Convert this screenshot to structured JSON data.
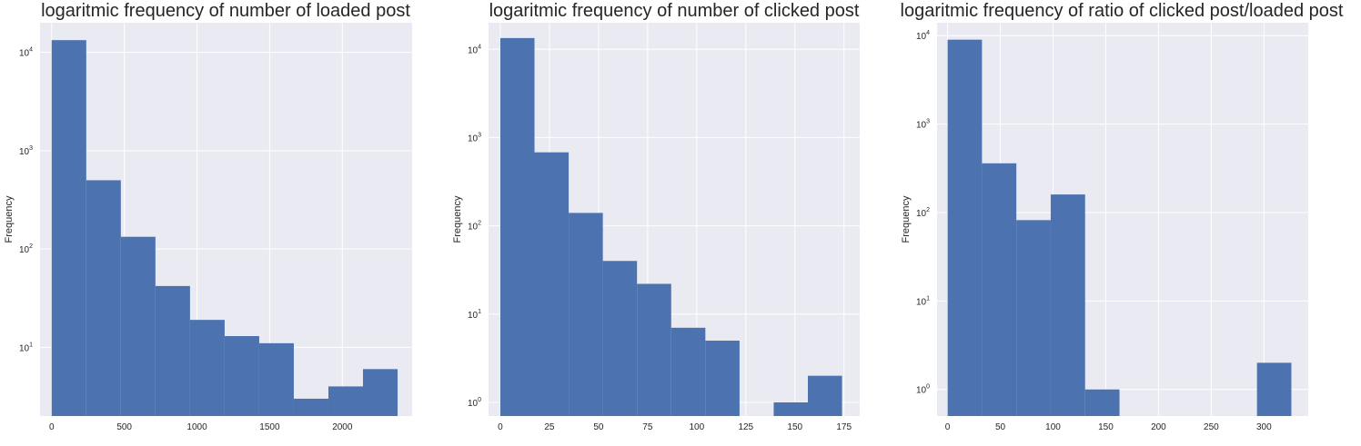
{
  "chart_data": [
    {
      "type": "histogram",
      "title": "logaritmic frequency of number of loaded post",
      "xlabel": "",
      "ylabel": "Frequency",
      "yscale": "log",
      "ylim": [
        2,
        20000
      ],
      "xlim": [
        -80,
        2480
      ],
      "xticks": [
        0,
        500,
        1000,
        1500,
        2000
      ],
      "xtick_labels": [
        "0",
        "500",
        "1000",
        "1500",
        "2000"
      ],
      "yticks": [
        10,
        100,
        1000,
        10000
      ],
      "ytick_labels": [
        {
          "base": "10",
          "exp": "1"
        },
        {
          "base": "10",
          "exp": "2"
        },
        {
          "base": "10",
          "exp": "3"
        },
        {
          "base": "10",
          "exp": "4"
        }
      ],
      "bins": [
        0,
        238,
        476,
        714,
        952,
        1190,
        1428,
        1666,
        1904,
        2142,
        2380
      ],
      "values": [
        13300,
        500,
        133,
        42,
        19,
        13,
        11,
        3,
        4,
        6
      ],
      "grid": true,
      "bar_color": "#4c72b0",
      "background_color": "#eaeaf2"
    },
    {
      "type": "histogram",
      "title": "logaritmic frequency of number of clicked post",
      "xlabel": "",
      "ylabel": "Frequency",
      "yscale": "log",
      "ylim": [
        0.7,
        20000
      ],
      "xlim": [
        -6,
        183
      ],
      "xticks": [
        0,
        25,
        50,
        75,
        100,
        125,
        150,
        175
      ],
      "xtick_labels": [
        "0",
        "25",
        "50",
        "75",
        "100",
        "125",
        "150",
        "175"
      ],
      "yticks": [
        1,
        10,
        100,
        1000,
        10000
      ],
      "ytick_labels": [
        {
          "base": "10",
          "exp": "0"
        },
        {
          "base": "10",
          "exp": "1"
        },
        {
          "base": "10",
          "exp": "2"
        },
        {
          "base": "10",
          "exp": "3"
        },
        {
          "base": "10",
          "exp": "4"
        }
      ],
      "bins": [
        0,
        17.4,
        34.8,
        52.2,
        69.6,
        87,
        104.4,
        121.8,
        139.2,
        156.6,
        174
      ],
      "values": [
        13400,
        680,
        140,
        40,
        22,
        7,
        5,
        0,
        1,
        2
      ],
      "grid": true,
      "bar_color": "#4c72b0",
      "background_color": "#eaeaf2"
    },
    {
      "type": "histogram",
      "title": "logaritmic frequency of ratio of clicked post/loaded post",
      "xlabel": "",
      "ylabel": "Frequency",
      "yscale": "log",
      "ylim": [
        0.5,
        14000
      ],
      "xlim": [
        -10,
        342
      ],
      "xticks": [
        0,
        50,
        100,
        150,
        200,
        250,
        300
      ],
      "xtick_labels": [
        "0",
        "50",
        "100",
        "150",
        "200",
        "250",
        "300"
      ],
      "yticks": [
        1,
        10,
        100,
        1000,
        10000
      ],
      "ytick_labels": [
        {
          "base": "10",
          "exp": "0"
        },
        {
          "base": "10",
          "exp": "1"
        },
        {
          "base": "10",
          "exp": "2"
        },
        {
          "base": "10",
          "exp": "3"
        },
        {
          "base": "10",
          "exp": "4"
        }
      ],
      "bins": [
        0,
        32.6,
        65.2,
        97.8,
        130.4,
        163,
        195.6,
        228.2,
        260.8,
        293.4,
        326
      ],
      "values": [
        9000,
        360,
        82,
        160,
        1,
        0,
        0,
        0,
        0,
        2
      ],
      "grid": true,
      "bar_color": "#4c72b0",
      "background_color": "#eaeaf2"
    }
  ]
}
